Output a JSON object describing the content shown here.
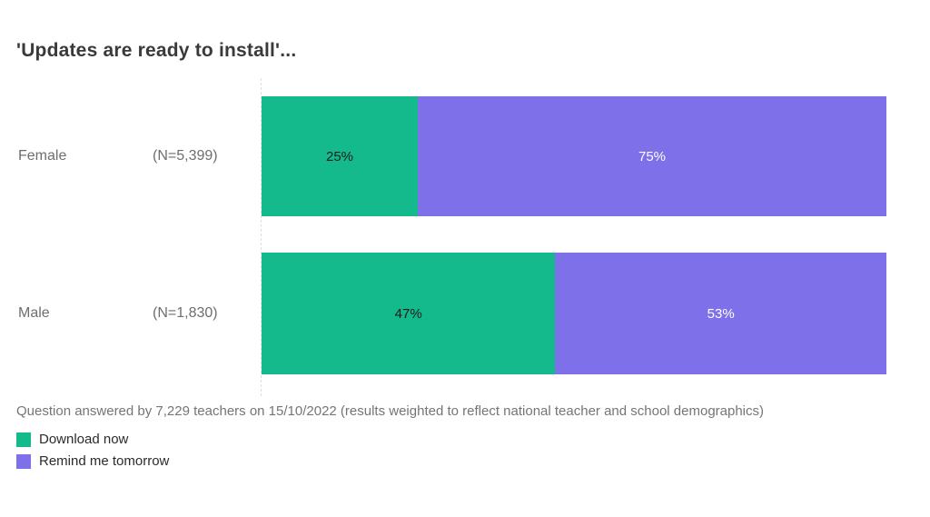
{
  "chart_data": {
    "type": "bar",
    "orientation": "horizontal",
    "stacked": true,
    "title": "'Updates are ready to install'...",
    "categories": [
      "Female",
      "Male"
    ],
    "category_sample_sizes": [
      "(N=5,399)",
      "(N=1,830)"
    ],
    "series": [
      {
        "name": "Download now",
        "values": [
          25,
          47
        ],
        "color": "#14b98c",
        "value_label_color": "#1c1c1c"
      },
      {
        "name": "Remind me tomorrow",
        "values": [
          75,
          53
        ],
        "color": "#7e70e9",
        "value_label_color": "#ffffff"
      }
    ],
    "value_suffix": "%",
    "xlim": [
      0,
      100
    ],
    "grid": "dotted baseline at 0 only",
    "legend_position": "bottom-left",
    "footnote": "Question answered by 7,229 teachers on 15/10/2022 (results weighted to reflect national teacher and school demographics)"
  }
}
